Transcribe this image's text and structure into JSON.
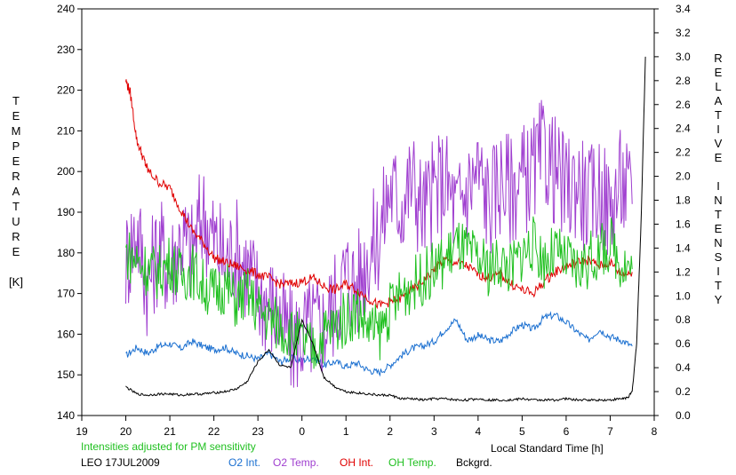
{
  "chart_data": {
    "type": "line",
    "left_axis_label": [
      "T",
      "E",
      "M",
      "P",
      "E",
      "R",
      "A",
      "T",
      "U",
      "R",
      "E",
      "",
      "[K]"
    ],
    "right_axis_label": [
      "R",
      "E",
      "L",
      "A",
      "T",
      "I",
      "V",
      "E",
      "",
      "I",
      "N",
      "T",
      "E",
      "N",
      "S",
      "I",
      "T",
      "Y"
    ],
    "xlabel": "Local Standard Time [h]",
    "note": "Intensities adjusted for PM sensitivity",
    "site_date": "LEO 17JUL2009",
    "x_ticks": [
      "19",
      "21",
      "22",
      "23",
      "0",
      "1",
      "2",
      "3",
      "4",
      "5",
      "6",
      "7",
      "8"
    ],
    "x_tick_values": [
      19,
      21,
      22,
      23,
      24,
      25,
      26,
      27,
      28,
      29,
      30,
      31,
      32
    ],
    "x_tick_extra": {
      "label": "20",
      "value": 20
    },
    "xlim": [
      19,
      32
    ],
    "y_left_lim": [
      140,
      240
    ],
    "y_left_ticks": [
      "140",
      "150",
      "160",
      "170",
      "180",
      "190",
      "200",
      "210",
      "220",
      "230",
      "240"
    ],
    "y_right_lim": [
      0,
      3.4
    ],
    "y_right_ticks": [
      "0.0",
      "0.2",
      "0.4",
      "0.6",
      "0.8",
      "1.0",
      "1.2",
      "1.4",
      "1.6",
      "1.8",
      "2.0",
      "2.2",
      "2.4",
      "2.6",
      "2.8",
      "3.0",
      "3.2",
      "3.4"
    ],
    "series": [
      {
        "name": "O2 Int.",
        "axis": "right",
        "color": "#1a6fd0",
        "x": [
          20,
          20.25,
          20.5,
          20.75,
          21,
          21.25,
          21.5,
          21.75,
          22,
          22.25,
          22.5,
          22.75,
          23,
          23.25,
          23.5,
          23.75,
          24,
          24.25,
          24.5,
          24.75,
          25,
          25.25,
          25.5,
          25.75,
          26,
          26.25,
          26.5,
          26.75,
          27,
          27.25,
          27.5,
          27.75,
          28,
          28.25,
          28.5,
          28.75,
          29,
          29.25,
          29.5,
          29.75,
          30,
          30.25,
          30.5,
          30.75,
          31,
          31.25,
          31.5
        ],
        "y": [
          0.5,
          0.57,
          0.52,
          0.58,
          0.6,
          0.56,
          0.62,
          0.58,
          0.55,
          0.57,
          0.52,
          0.5,
          0.47,
          0.52,
          0.45,
          0.48,
          0.46,
          0.49,
          0.42,
          0.45,
          0.41,
          0.44,
          0.38,
          0.36,
          0.42,
          0.5,
          0.56,
          0.58,
          0.62,
          0.72,
          0.8,
          0.63,
          0.67,
          0.63,
          0.62,
          0.7,
          0.76,
          0.72,
          0.82,
          0.84,
          0.78,
          0.7,
          0.63,
          0.72,
          0.66,
          0.63,
          0.58
        ]
      },
      {
        "name": "O2 Temp.",
        "axis": "left",
        "color": "#a040d0",
        "x": [
          20,
          20.25,
          20.5,
          20.75,
          21,
          21.25,
          21.5,
          21.75,
          22,
          22.25,
          22.5,
          22.75,
          23,
          23.25,
          23.5,
          23.75,
          24,
          24.25,
          24.5,
          24.75,
          25,
          25.25,
          25.5,
          25.75,
          26,
          26.25,
          26.5,
          26.75,
          27,
          27.25,
          27.5,
          27.75,
          28,
          28.25,
          28.5,
          28.75,
          29,
          29.25,
          29.5,
          29.75,
          30,
          30.25,
          30.5,
          30.75,
          31,
          31.25,
          31.5
        ],
        "y": [
          178,
          186,
          172,
          182,
          176,
          184,
          180,
          190,
          183,
          178,
          181,
          176,
          170,
          168,
          164,
          158,
          160,
          162,
          162,
          168,
          175,
          172,
          180,
          184,
          196,
          192,
          198,
          190,
          195,
          198,
          190,
          196,
          200,
          192,
          198,
          196,
          198,
          200,
          205,
          200,
          195,
          198,
          192,
          196,
          190,
          198,
          192
        ]
      },
      {
        "name": "OH Int.",
        "axis": "right",
        "color": "#e00000",
        "x": [
          20,
          20.1,
          20.25,
          20.4,
          20.5,
          20.75,
          21,
          21.25,
          21.5,
          21.75,
          22,
          22.25,
          22.5,
          22.75,
          23,
          23.25,
          23.5,
          23.75,
          24,
          24.25,
          24.5,
          24.75,
          25,
          25.25,
          25.5,
          25.75,
          26,
          26.25,
          26.5,
          26.75,
          27,
          27.25,
          27.5,
          27.75,
          28,
          28.25,
          28.5,
          28.75,
          29,
          29.25,
          29.5,
          29.75,
          30,
          30.25,
          30.5,
          30.75,
          31,
          31.25,
          31.5
        ],
        "y": [
          2.8,
          2.7,
          2.3,
          2.15,
          2.05,
          1.95,
          1.9,
          1.72,
          1.55,
          1.45,
          1.32,
          1.28,
          1.25,
          1.22,
          1.18,
          1.15,
          1.1,
          1.1,
          1.12,
          1.15,
          1.08,
          1.05,
          1.1,
          1.05,
          0.98,
          0.92,
          0.95,
          0.98,
          1.05,
          1.12,
          1.22,
          1.3,
          1.28,
          1.25,
          1.18,
          1.15,
          1.18,
          1.1,
          1.05,
          1.02,
          1.12,
          1.2,
          1.25,
          1.28,
          1.3,
          1.25,
          1.28,
          1.18,
          1.2
        ]
      },
      {
        "name": "OH Temp.",
        "axis": "left",
        "color": "#20c020",
        "x": [
          20,
          20.25,
          20.5,
          20.75,
          21,
          21.25,
          21.5,
          21.75,
          22,
          22.25,
          22.5,
          22.75,
          23,
          23.25,
          23.5,
          23.75,
          24,
          24.25,
          24.5,
          24.75,
          25,
          25.25,
          25.5,
          25.75,
          26,
          26.25,
          26.5,
          26.75,
          27,
          27.25,
          27.5,
          27.75,
          28,
          28.25,
          28.5,
          28.75,
          29,
          29.25,
          29.5,
          29.75,
          30,
          30.25,
          30.5,
          30.75,
          31,
          31.25,
          31.5
        ],
        "y": [
          180,
          178,
          176,
          175,
          178,
          174,
          176,
          172,
          170,
          172,
          168,
          170,
          166,
          164,
          162,
          160,
          158,
          156,
          160,
          162,
          164,
          166,
          162,
          160,
          166,
          170,
          172,
          174,
          176,
          178,
          182,
          180,
          178,
          176,
          178,
          176,
          180,
          182,
          178,
          180,
          178,
          176,
          178,
          180,
          182,
          178,
          176
        ]
      },
      {
        "name": "Bckgrd.",
        "axis": "right",
        "color": "#000000",
        "x": [
          20,
          20.25,
          20.5,
          20.75,
          21,
          21.25,
          21.5,
          21.75,
          22,
          22.25,
          22.5,
          22.75,
          23,
          23.25,
          23.5,
          23.75,
          24,
          24.25,
          24.5,
          24.75,
          25,
          25.25,
          25.5,
          25.75,
          26,
          26.25,
          26.5,
          26.75,
          27,
          27.25,
          27.5,
          27.75,
          28,
          28.25,
          28.5,
          28.75,
          29,
          29.25,
          29.5,
          29.75,
          30,
          30.25,
          30.5,
          30.75,
          31,
          31.25,
          31.4,
          31.5,
          31.6,
          31.7,
          31.8
        ],
        "y": [
          0.24,
          0.18,
          0.17,
          0.18,
          0.18,
          0.17,
          0.18,
          0.18,
          0.19,
          0.2,
          0.22,
          0.28,
          0.45,
          0.55,
          0.42,
          0.4,
          0.8,
          0.6,
          0.32,
          0.24,
          0.2,
          0.19,
          0.18,
          0.17,
          0.17,
          0.14,
          0.14,
          0.13,
          0.14,
          0.14,
          0.13,
          0.13,
          0.14,
          0.13,
          0.13,
          0.13,
          0.14,
          0.13,
          0.13,
          0.13,
          0.14,
          0.13,
          0.13,
          0.13,
          0.13,
          0.14,
          0.15,
          0.2,
          0.6,
          1.6,
          3.0
        ]
      }
    ]
  }
}
